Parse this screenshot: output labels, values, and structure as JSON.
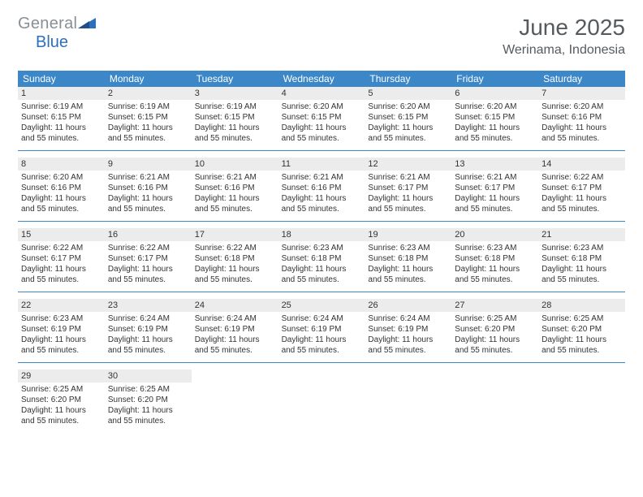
{
  "brand": {
    "grey": "General",
    "blue": "Blue"
  },
  "title": "June 2025",
  "location": "Werinama, Indonesia",
  "colors": {
    "header_bar": "#3b87c8",
    "week_divider": "#3b87c8",
    "daynum_bg": "#ececec",
    "text": "#333333",
    "logo_grey": "#8a8f94",
    "logo_blue": "#2c6fbb",
    "background": "#ffffff"
  },
  "typography": {
    "month_title_size_pt": 21,
    "location_size_pt": 12,
    "weekday_size_pt": 9,
    "daynum_size_pt": 8,
    "body_size_pt": 7.5
  },
  "weekdays": [
    "Sunday",
    "Monday",
    "Tuesday",
    "Wednesday",
    "Thursday",
    "Friday",
    "Saturday"
  ],
  "weeks": [
    [
      {
        "n": "1",
        "sunrise": "6:19 AM",
        "sunset": "6:15 PM",
        "daylight": "11 hours and 55 minutes."
      },
      {
        "n": "2",
        "sunrise": "6:19 AM",
        "sunset": "6:15 PM",
        "daylight": "11 hours and 55 minutes."
      },
      {
        "n": "3",
        "sunrise": "6:19 AM",
        "sunset": "6:15 PM",
        "daylight": "11 hours and 55 minutes."
      },
      {
        "n": "4",
        "sunrise": "6:20 AM",
        "sunset": "6:15 PM",
        "daylight": "11 hours and 55 minutes."
      },
      {
        "n": "5",
        "sunrise": "6:20 AM",
        "sunset": "6:15 PM",
        "daylight": "11 hours and 55 minutes."
      },
      {
        "n": "6",
        "sunrise": "6:20 AM",
        "sunset": "6:15 PM",
        "daylight": "11 hours and 55 minutes."
      },
      {
        "n": "7",
        "sunrise": "6:20 AM",
        "sunset": "6:16 PM",
        "daylight": "11 hours and 55 minutes."
      }
    ],
    [
      {
        "n": "8",
        "sunrise": "6:20 AM",
        "sunset": "6:16 PM",
        "daylight": "11 hours and 55 minutes."
      },
      {
        "n": "9",
        "sunrise": "6:21 AM",
        "sunset": "6:16 PM",
        "daylight": "11 hours and 55 minutes."
      },
      {
        "n": "10",
        "sunrise": "6:21 AM",
        "sunset": "6:16 PM",
        "daylight": "11 hours and 55 minutes."
      },
      {
        "n": "11",
        "sunrise": "6:21 AM",
        "sunset": "6:16 PM",
        "daylight": "11 hours and 55 minutes."
      },
      {
        "n": "12",
        "sunrise": "6:21 AM",
        "sunset": "6:17 PM",
        "daylight": "11 hours and 55 minutes."
      },
      {
        "n": "13",
        "sunrise": "6:21 AM",
        "sunset": "6:17 PM",
        "daylight": "11 hours and 55 minutes."
      },
      {
        "n": "14",
        "sunrise": "6:22 AM",
        "sunset": "6:17 PM",
        "daylight": "11 hours and 55 minutes."
      }
    ],
    [
      {
        "n": "15",
        "sunrise": "6:22 AM",
        "sunset": "6:17 PM",
        "daylight": "11 hours and 55 minutes."
      },
      {
        "n": "16",
        "sunrise": "6:22 AM",
        "sunset": "6:17 PM",
        "daylight": "11 hours and 55 minutes."
      },
      {
        "n": "17",
        "sunrise": "6:22 AM",
        "sunset": "6:18 PM",
        "daylight": "11 hours and 55 minutes."
      },
      {
        "n": "18",
        "sunrise": "6:23 AM",
        "sunset": "6:18 PM",
        "daylight": "11 hours and 55 minutes."
      },
      {
        "n": "19",
        "sunrise": "6:23 AM",
        "sunset": "6:18 PM",
        "daylight": "11 hours and 55 minutes."
      },
      {
        "n": "20",
        "sunrise": "6:23 AM",
        "sunset": "6:18 PM",
        "daylight": "11 hours and 55 minutes."
      },
      {
        "n": "21",
        "sunrise": "6:23 AM",
        "sunset": "6:18 PM",
        "daylight": "11 hours and 55 minutes."
      }
    ],
    [
      {
        "n": "22",
        "sunrise": "6:23 AM",
        "sunset": "6:19 PM",
        "daylight": "11 hours and 55 minutes."
      },
      {
        "n": "23",
        "sunrise": "6:24 AM",
        "sunset": "6:19 PM",
        "daylight": "11 hours and 55 minutes."
      },
      {
        "n": "24",
        "sunrise": "6:24 AM",
        "sunset": "6:19 PM",
        "daylight": "11 hours and 55 minutes."
      },
      {
        "n": "25",
        "sunrise": "6:24 AM",
        "sunset": "6:19 PM",
        "daylight": "11 hours and 55 minutes."
      },
      {
        "n": "26",
        "sunrise": "6:24 AM",
        "sunset": "6:19 PM",
        "daylight": "11 hours and 55 minutes."
      },
      {
        "n": "27",
        "sunrise": "6:25 AM",
        "sunset": "6:20 PM",
        "daylight": "11 hours and 55 minutes."
      },
      {
        "n": "28",
        "sunrise": "6:25 AM",
        "sunset": "6:20 PM",
        "daylight": "11 hours and 55 minutes."
      }
    ],
    [
      {
        "n": "29",
        "sunrise": "6:25 AM",
        "sunset": "6:20 PM",
        "daylight": "11 hours and 55 minutes."
      },
      {
        "n": "30",
        "sunrise": "6:25 AM",
        "sunset": "6:20 PM",
        "daylight": "11 hours and 55 minutes."
      },
      {
        "empty": true
      },
      {
        "empty": true
      },
      {
        "empty": true
      },
      {
        "empty": true
      },
      {
        "empty": true
      }
    ]
  ],
  "labels": {
    "sunrise": "Sunrise:",
    "sunset": "Sunset:",
    "daylight": "Daylight:"
  }
}
